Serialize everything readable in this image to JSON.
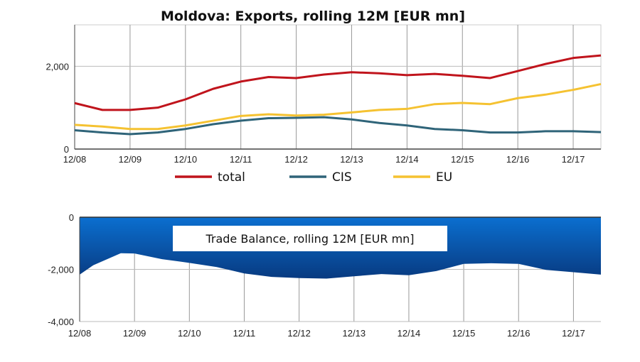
{
  "chart_data": [
    {
      "type": "line",
      "title": "Moldova: Exports, rolling 12M [EUR mn]",
      "xlabel": "",
      "ylabel": "",
      "x_tick_labels": [
        "12/08",
        "12/09",
        "12/10",
        "12/11",
        "12/12",
        "12/13",
        "12/14",
        "12/15",
        "12/16",
        "12/17"
      ],
      "y_tick_labels": [
        "0",
        "2,000"
      ],
      "ylim": [
        0,
        3000
      ],
      "xlim": [
        "12/08",
        "06/18"
      ],
      "grid": true,
      "legend_placement": "bottom",
      "x": [
        "12/08",
        "06/09",
        "12/09",
        "06/10",
        "12/10",
        "06/11",
        "12/11",
        "06/12",
        "12/12",
        "06/13",
        "12/13",
        "06/14",
        "12/14",
        "06/15",
        "12/15",
        "06/16",
        "12/16",
        "06/17",
        "12/17",
        "06/18"
      ],
      "series": [
        {
          "name": "total",
          "color": "#c0141c",
          "values": [
            1110,
            945,
            945,
            1000,
            1200,
            1455,
            1630,
            1740,
            1715,
            1800,
            1855,
            1830,
            1785,
            1815,
            1770,
            1715,
            1885,
            2055,
            2200,
            2260
          ]
        },
        {
          "name": "CIS",
          "color": "#2f6479",
          "values": [
            455,
            400,
            360,
            400,
            485,
            600,
            685,
            745,
            755,
            770,
            715,
            630,
            570,
            485,
            455,
            400,
            400,
            430,
            430,
            410
          ]
        },
        {
          "name": "EU",
          "color": "#f5c231",
          "values": [
            585,
            545,
            485,
            485,
            570,
            685,
            800,
            840,
            810,
            830,
            885,
            945,
            970,
            1085,
            1115,
            1085,
            1230,
            1315,
            1430,
            1570
          ]
        }
      ]
    },
    {
      "type": "area",
      "title": "Trade Balance, rolling 12M [EUR mn]",
      "xlabel": "",
      "ylabel": "",
      "x_tick_labels": [
        "12/08",
        "12/09",
        "12/10",
        "12/11",
        "12/12",
        "12/13",
        "12/14",
        "12/15",
        "12/16",
        "12/17"
      ],
      "y_tick_labels": [
        "0",
        "-2,000",
        "-4,000"
      ],
      "ylim": [
        -4000,
        0
      ],
      "xlim": [
        "12/08",
        "06/18"
      ],
      "grid": true,
      "fill_colors": [
        "#0b6fd0",
        "#083a80"
      ],
      "x": [
        "12/08",
        "03/09",
        "09/09",
        "12/09",
        "06/10",
        "12/10",
        "06/11",
        "12/11",
        "06/12",
        "12/12",
        "06/13",
        "12/13",
        "06/14",
        "12/14",
        "06/15",
        "12/15",
        "06/16",
        "12/16",
        "06/17",
        "12/17",
        "06/18"
      ],
      "values": [
        -2200,
        -1840,
        -1380,
        -1390,
        -1610,
        -1750,
        -1910,
        -2155,
        -2290,
        -2335,
        -2355,
        -2265,
        -2180,
        -2225,
        -2065,
        -1790,
        -1765,
        -1790,
        -2020,
        -2110,
        -2200
      ]
    }
  ]
}
